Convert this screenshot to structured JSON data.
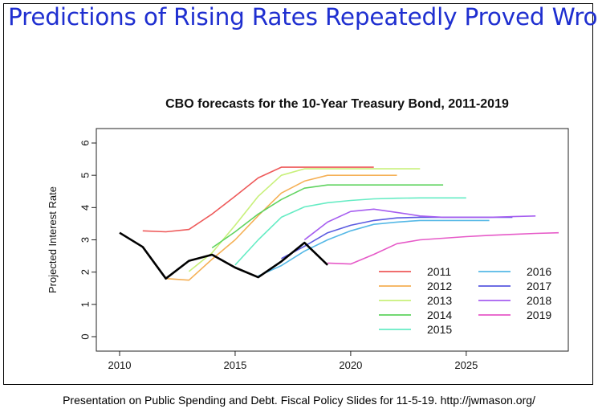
{
  "slide_title": "Predictions of Rising Rates Repeatedly Proved Wrong",
  "footer": "Presentation on Public Spending and Debt.  Fiscal Policy Slides for 11-5-19.  http://jwmason.org/",
  "chart_data": {
    "type": "line",
    "title": "CBO forecasts for the 10-Year Treasury Bond, 2011-2019",
    "xlabel": "",
    "ylabel": "Projected Interest Rate",
    "xlim": [
      2010,
      2029
    ],
    "ylim": [
      0,
      6
    ],
    "x_ticks": [
      2010,
      2015,
      2020,
      2025
    ],
    "y_ticks": [
      0,
      1,
      2,
      3,
      4,
      5,
      6
    ],
    "grid": false,
    "legend_position": "bottom-right",
    "series": [
      {
        "name": "2011",
        "color": "#ee5a5a",
        "x": [
          2011,
          2012,
          2013,
          2014,
          2015,
          2016,
          2017,
          2018,
          2019,
          2020,
          2021
        ],
        "y": [
          3.28,
          3.25,
          3.32,
          3.8,
          4.35,
          4.92,
          5.25,
          5.25,
          5.25,
          5.25,
          5.25
        ]
      },
      {
        "name": "2012",
        "color": "#f5b055",
        "x": [
          2012,
          2013,
          2014,
          2015,
          2016,
          2017,
          2018,
          2019,
          2020,
          2021,
          2022
        ],
        "y": [
          1.8,
          1.75,
          2.4,
          3.0,
          3.75,
          4.45,
          4.82,
          5.0,
          5.0,
          5.0,
          5.0
        ]
      },
      {
        "name": "2013",
        "color": "#c8f07a",
        "x": [
          2013,
          2014,
          2015,
          2016,
          2017,
          2018,
          2019,
          2020,
          2021,
          2022,
          2023
        ],
        "y": [
          2.02,
          2.6,
          3.45,
          4.35,
          5.0,
          5.2,
          5.2,
          5.2,
          5.2,
          5.2,
          5.2
        ]
      },
      {
        "name": "2014",
        "color": "#5fd35f",
        "x": [
          2014,
          2015,
          2016,
          2017,
          2018,
          2019,
          2020,
          2021,
          2022,
          2023,
          2024
        ],
        "y": [
          2.75,
          3.25,
          3.8,
          4.25,
          4.6,
          4.7,
          4.7,
          4.7,
          4.7,
          4.7,
          4.7
        ]
      },
      {
        "name": "2015",
        "color": "#66ecc4",
        "x": [
          2015,
          2016,
          2017,
          2018,
          2019,
          2020,
          2021,
          2022,
          2023,
          2024,
          2025
        ],
        "y": [
          2.22,
          3.0,
          3.7,
          4.02,
          4.15,
          4.22,
          4.27,
          4.29,
          4.3,
          4.3,
          4.3
        ]
      },
      {
        "name": "2016",
        "color": "#55b8e6",
        "x": [
          2016,
          2017,
          2018,
          2019,
          2020,
          2021,
          2022,
          2023,
          2024,
          2025,
          2026
        ],
        "y": [
          1.88,
          2.2,
          2.65,
          3.0,
          3.28,
          3.48,
          3.55,
          3.6,
          3.6,
          3.6,
          3.6
        ]
      },
      {
        "name": "2017",
        "color": "#5a5ae0",
        "x": [
          2017,
          2018,
          2019,
          2020,
          2021,
          2022,
          2023,
          2024,
          2025,
          2026,
          2027
        ],
        "y": [
          2.42,
          2.8,
          3.22,
          3.45,
          3.6,
          3.68,
          3.7,
          3.7,
          3.7,
          3.7,
          3.7
        ]
      },
      {
        "name": "2018",
        "color": "#a65ef0",
        "x": [
          2018,
          2019,
          2020,
          2021,
          2022,
          2023,
          2024,
          2025,
          2026,
          2027,
          2028
        ],
        "y": [
          3.0,
          3.55,
          3.88,
          3.95,
          3.85,
          3.74,
          3.7,
          3.7,
          3.7,
          3.72,
          3.74
        ]
      },
      {
        "name": "2019",
        "color": "#e65ac8",
        "x": [
          2019,
          2020,
          2021,
          2022,
          2023,
          2024,
          2025,
          2026,
          2027,
          2028,
          2029
        ],
        "y": [
          2.28,
          2.25,
          2.55,
          2.88,
          3.0,
          3.05,
          3.1,
          3.14,
          3.17,
          3.2,
          3.22
        ]
      },
      {
        "name": "",
        "color": "#000000",
        "bold": true,
        "x": [
          2010,
          2011,
          2012,
          2013,
          2014,
          2015,
          2016,
          2017,
          2018,
          2019
        ],
        "y": [
          3.22,
          2.78,
          1.8,
          2.35,
          2.54,
          2.14,
          1.84,
          2.33,
          2.91,
          2.22
        ]
      }
    ]
  }
}
